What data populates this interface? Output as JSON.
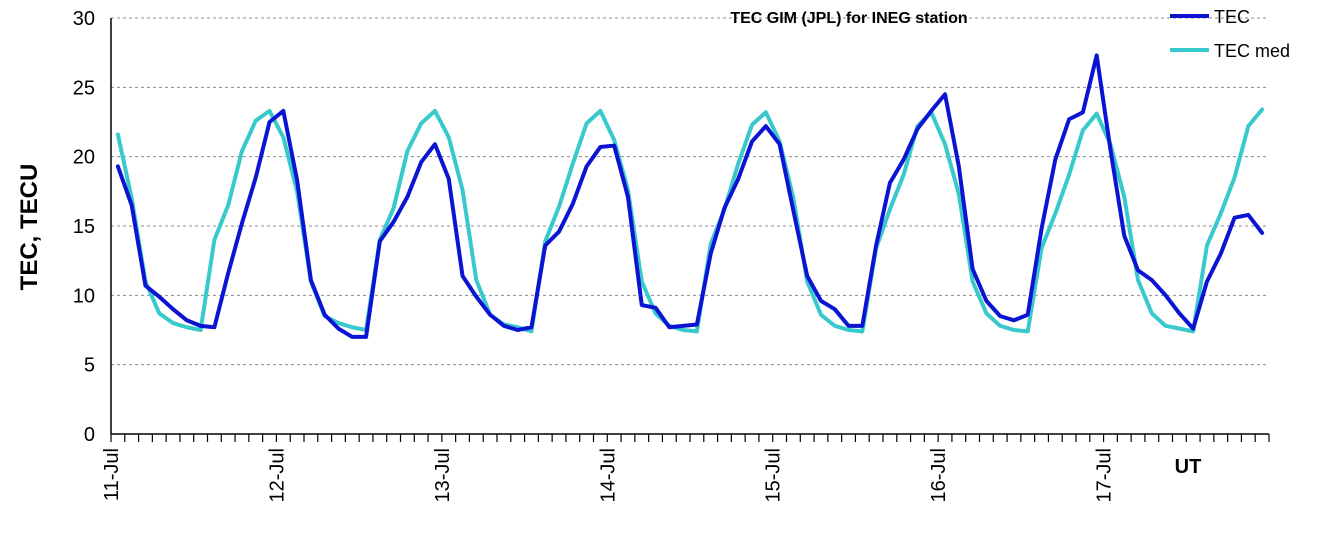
{
  "chart_data": {
    "type": "line",
    "title": "TEC GIM (JPL) for INEG station",
    "ylabel": "TEC, TECU",
    "xlabel": "UT",
    "ylim": [
      0,
      30
    ],
    "yticks": [
      "0",
      "5",
      "10",
      "15",
      "20",
      "25",
      "30"
    ],
    "grid": "horizontal dashed",
    "legend_position": "top-right",
    "day_labels": [
      "11-Jul",
      "12-Jul",
      "13-Jul",
      "14-Jul",
      "15-Jul",
      "16-Jul",
      "17-Jul"
    ],
    "samples_per_day": 12,
    "series": [
      {
        "name": "TEC",
        "color": "#0a14d2",
        "values": [
          19.3,
          16.5,
          10.7,
          9.9,
          9.0,
          8.2,
          7.8,
          7.7,
          11.6,
          15.2,
          18.5,
          22.5,
          23.3,
          18.3,
          11.1,
          8.6,
          7.6,
          7.0,
          7.0,
          13.9,
          15.3,
          17.1,
          19.6,
          20.9,
          18.4,
          11.4,
          9.9,
          8.6,
          7.8,
          7.5,
          7.7,
          13.6,
          14.6,
          16.6,
          19.3,
          20.7,
          20.8,
          17.1,
          9.3,
          9.1,
          7.7,
          7.8,
          7.9,
          13.0,
          16.3,
          18.4,
          21.1,
          22.2,
          20.9,
          16.1,
          11.4,
          9.6,
          9.0,
          7.8,
          7.8,
          13.6,
          18.1,
          19.8,
          22.0,
          23.3,
          24.5,
          19.3,
          11.9,
          9.6,
          8.5,
          8.2,
          8.6,
          14.8,
          19.8,
          22.7,
          23.2,
          27.3,
          20.5,
          14.3,
          11.8,
          11.1,
          10.0,
          8.7,
          7.6,
          11.0,
          13.0,
          15.6,
          15.8,
          14.5
        ]
      },
      {
        "name": "TEC med",
        "color": "#38c9cc",
        "values": [
          21.6,
          17.0,
          11.0,
          8.7,
          8.0,
          7.7,
          7.5,
          14.0,
          16.5,
          20.4,
          22.6,
          23.3,
          21.4,
          17.5,
          11.0,
          8.5,
          8.0,
          7.7,
          7.5,
          14.0,
          16.3,
          20.4,
          22.4,
          23.3,
          21.4,
          17.6,
          11.1,
          8.6,
          7.9,
          7.7,
          7.4,
          13.9,
          16.4,
          19.5,
          22.4,
          23.3,
          21.2,
          17.6,
          11.0,
          8.7,
          7.8,
          7.5,
          7.4,
          13.7,
          16.2,
          19.5,
          22.3,
          23.2,
          21.1,
          17.0,
          11.0,
          8.6,
          7.8,
          7.5,
          7.4,
          13.4,
          16.2,
          18.7,
          22.2,
          23.2,
          20.9,
          17.3,
          11.0,
          8.7,
          7.8,
          7.5,
          7.4,
          13.4,
          15.9,
          18.7,
          21.9,
          23.1,
          20.9,
          17.1,
          11.1,
          8.7,
          7.8,
          7.6,
          7.4,
          13.6,
          15.9,
          18.5,
          22.2,
          23.4
        ]
      }
    ]
  }
}
